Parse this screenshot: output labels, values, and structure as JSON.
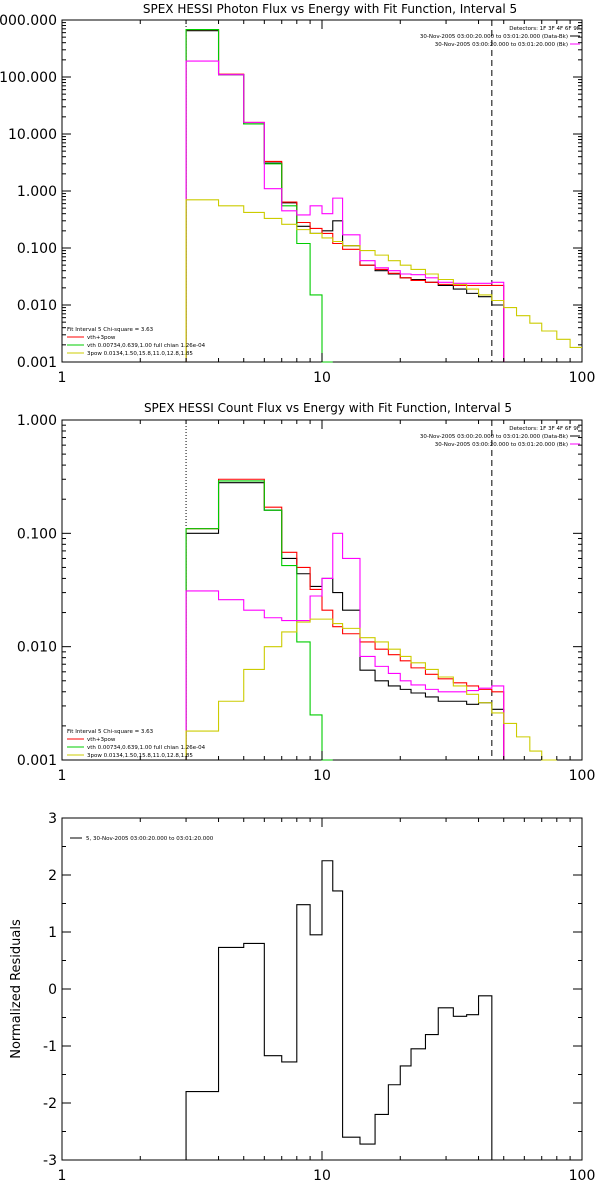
{
  "chart_data": [
    {
      "type": "line",
      "title": "SPEX HESSI Photon Flux vs Energy with Fit Function, Interval 5",
      "xlabel": "",
      "ylabel": "",
      "x_scale": "log",
      "y_scale": "log",
      "xlim": [
        1,
        100
      ],
      "ylim": [
        0.001,
        1000
      ],
      "x_ticks": [
        "1",
        "10",
        "100"
      ],
      "y_ticks": [
        "0.001",
        "0.010",
        "0.100",
        "1.000",
        "10.000",
        "100.000",
        "1000.000"
      ],
      "y_tick_values": [
        0.001,
        0.01,
        0.1,
        1,
        10,
        100,
        1000
      ],
      "legend_right": [
        "Detectors: 1F 3F 4F 6F 9F",
        "30-Nov-2005 03:00:20.000 to 03:01:20.000 (Data-Bk)",
        "30-Nov-2005 03:00:20.000 to 03:01:20.000 (Bk)"
      ],
      "legend_left": [
        "Fit Interval 5   Chi-square = 3.63",
        "vth+3pow",
        "vth 0.00734,0.639,1.00  full chian 1.26e-04",
        "3pow 0.0134,1.50,15.8,11.0,12.8,1.85"
      ],
      "vlines": [
        {
          "x": 3,
          "style": "dotted"
        },
        {
          "x": 45,
          "style": "dashed"
        }
      ],
      "edges": [
        3,
        4,
        5,
        6,
        7,
        8,
        9,
        10,
        11,
        12,
        14,
        16,
        18,
        20,
        22,
        25,
        28,
        32,
        36,
        40,
        45,
        50,
        56,
        63,
        70,
        80,
        90,
        100
      ],
      "series": [
        {
          "color": "#000000",
          "values": [
            650,
            110,
            15,
            3.1,
            0.62,
            0.24,
            0.18,
            0.2,
            0.3,
            0.11,
            0.05,
            0.04,
            0.035,
            0.03,
            0.028,
            0.025,
            0.022,
            0.019,
            0.016,
            0.014,
            0.01
          ]
        },
        {
          "color": "#ff0000",
          "values": [
            680,
            112,
            16,
            3.3,
            0.64,
            0.28,
            0.22,
            0.18,
            0.12,
            0.095,
            0.05,
            0.042,
            0.036,
            0.03,
            0.027,
            0.025,
            0.023,
            0.022,
            0.022,
            0.022,
            0.022
          ]
        },
        {
          "color": "#00cc00",
          "values": [
            680,
            110,
            15,
            3,
            0.55,
            0.12,
            0.015,
            0.0009
          ]
        },
        {
          "color": "#ff00ff",
          "values": [
            190,
            110,
            16,
            1.1,
            0.45,
            0.38,
            0.55,
            0.4,
            0.75,
            0.17,
            0.06,
            0.045,
            0.04,
            0.035,
            0.034,
            0.03,
            0.025,
            0.024,
            0.024,
            0.024,
            0.025
          ]
        },
        {
          "color": "#cccc00",
          "values": [
            0.7,
            0.55,
            0.42,
            0.33,
            0.26,
            0.21,
            0.18,
            0.15,
            0.13,
            0.11,
            0.09,
            0.075,
            0.06,
            0.05,
            0.042,
            0.035,
            0.028,
            0.023,
            0.019,
            0.015,
            0.012,
            0.009,
            0.0065,
            0.0048,
            0.0035,
            0.0025,
            0.0018
          ]
        }
      ]
    },
    {
      "type": "line",
      "title": "SPEX HESSI Count Flux vs Energy with Fit Function, Interval 5",
      "xlabel": "",
      "ylabel": "",
      "x_scale": "log",
      "y_scale": "log",
      "xlim": [
        1,
        100
      ],
      "ylim": [
        0.001,
        1
      ],
      "x_ticks": [
        "1",
        "10",
        "100"
      ],
      "y_ticks": [
        "0.001",
        "0.010",
        "0.100",
        "1.000"
      ],
      "y_tick_values": [
        0.001,
        0.01,
        0.1,
        1
      ],
      "legend_right": [
        "Detectors: 1F 3F 4F 6F 9F",
        "30-Nov-2005 03:00:20.000 to 03:01:20.000 (Data-Bk)",
        "30-Nov-2005 03:00:20.000 to 03:01:20.000 (Bk)"
      ],
      "legend_left": [
        "Fit Interval 5   Chi-square = 3.63",
        "vth+3pow",
        "vth 0.00734,0.639,1.00  full chian 1.26e-04",
        "3pow 0.0134,1.50,15.8,11.0,12.8,1.85"
      ],
      "vlines": [
        {
          "x": 3,
          "style": "dotted"
        },
        {
          "x": 45,
          "style": "dashed"
        }
      ],
      "edges": [
        3,
        4,
        5,
        6,
        7,
        8,
        9,
        10,
        11,
        12,
        14,
        16,
        18,
        20,
        22,
        25,
        28,
        32,
        36,
        40,
        45,
        50,
        56,
        63,
        70,
        80,
        90,
        100
      ],
      "series": [
        {
          "color": "#000000",
          "values": [
            0.1,
            0.28,
            0.28,
            0.16,
            0.06,
            0.044,
            0.034,
            0.04,
            0.03,
            0.021,
            0.0062,
            0.005,
            0.0045,
            0.0042,
            0.0039,
            0.0036,
            0.0033,
            0.0033,
            0.0031,
            0.0032,
            0.0028
          ]
        },
        {
          "color": "#ff0000",
          "values": [
            0.11,
            0.3,
            0.3,
            0.17,
            0.068,
            0.05,
            0.032,
            0.021,
            0.015,
            0.013,
            0.011,
            0.0095,
            0.0085,
            0.0075,
            0.0065,
            0.0057,
            0.0052,
            0.0048,
            0.0045,
            0.0042,
            0.004
          ]
        },
        {
          "color": "#00cc00",
          "values": [
            0.11,
            0.29,
            0.29,
            0.16,
            0.052,
            0.011,
            0.0025,
            0.0007
          ]
        },
        {
          "color": "#ff00ff",
          "values": [
            0.031,
            0.026,
            0.021,
            0.018,
            0.017,
            0.017,
            0.028,
            0.04,
            0.1,
            0.06,
            0.0082,
            0.0067,
            0.0058,
            0.005,
            0.0046,
            0.0042,
            0.004,
            0.004,
            0.0041,
            0.0043,
            0.0045
          ]
        },
        {
          "color": "#cccc00",
          "values": [
            0.0018,
            0.0033,
            0.0063,
            0.01,
            0.0135,
            0.0165,
            0.0175,
            0.0175,
            0.016,
            0.0145,
            0.012,
            0.011,
            0.0095,
            0.0082,
            0.0072,
            0.0063,
            0.0054,
            0.0045,
            0.0038,
            0.0032,
            0.0026,
            0.0021,
            0.0016,
            0.0012,
            0.00095
          ]
        }
      ]
    },
    {
      "type": "line",
      "title": "",
      "xlabel": "",
      "ylabel": "Normalized Residuals",
      "x_scale": "log",
      "y_scale": "linear",
      "xlim": [
        1,
        100
      ],
      "ylim": [
        -3,
        3
      ],
      "x_ticks": [
        "1",
        "10",
        "100"
      ],
      "y_ticks": [
        "-3",
        "-2",
        "-1",
        "0",
        "1",
        "2",
        "3"
      ],
      "y_tick_values": [
        -3,
        -2,
        -1,
        0,
        1,
        2,
        3
      ],
      "legend_left": [
        "5, 30-Nov-2005 03:00:20.000 to 03:01:20.000"
      ],
      "edges": [
        3,
        4,
        5,
        6,
        7,
        8,
        9,
        10,
        11,
        12,
        14,
        16,
        18,
        20,
        22,
        25,
        28,
        32,
        36,
        40,
        45
      ],
      "series": [
        {
          "color": "#000000",
          "values": [
            -1.8,
            0.73,
            0.8,
            -1.17,
            -1.28,
            1.48,
            0.95,
            2.25,
            1.72,
            -2.6,
            -2.72,
            -2.2,
            -1.68,
            -1.35,
            -1.05,
            -0.8,
            -0.33,
            -0.48,
            -0.45,
            -0.12
          ]
        }
      ]
    }
  ]
}
